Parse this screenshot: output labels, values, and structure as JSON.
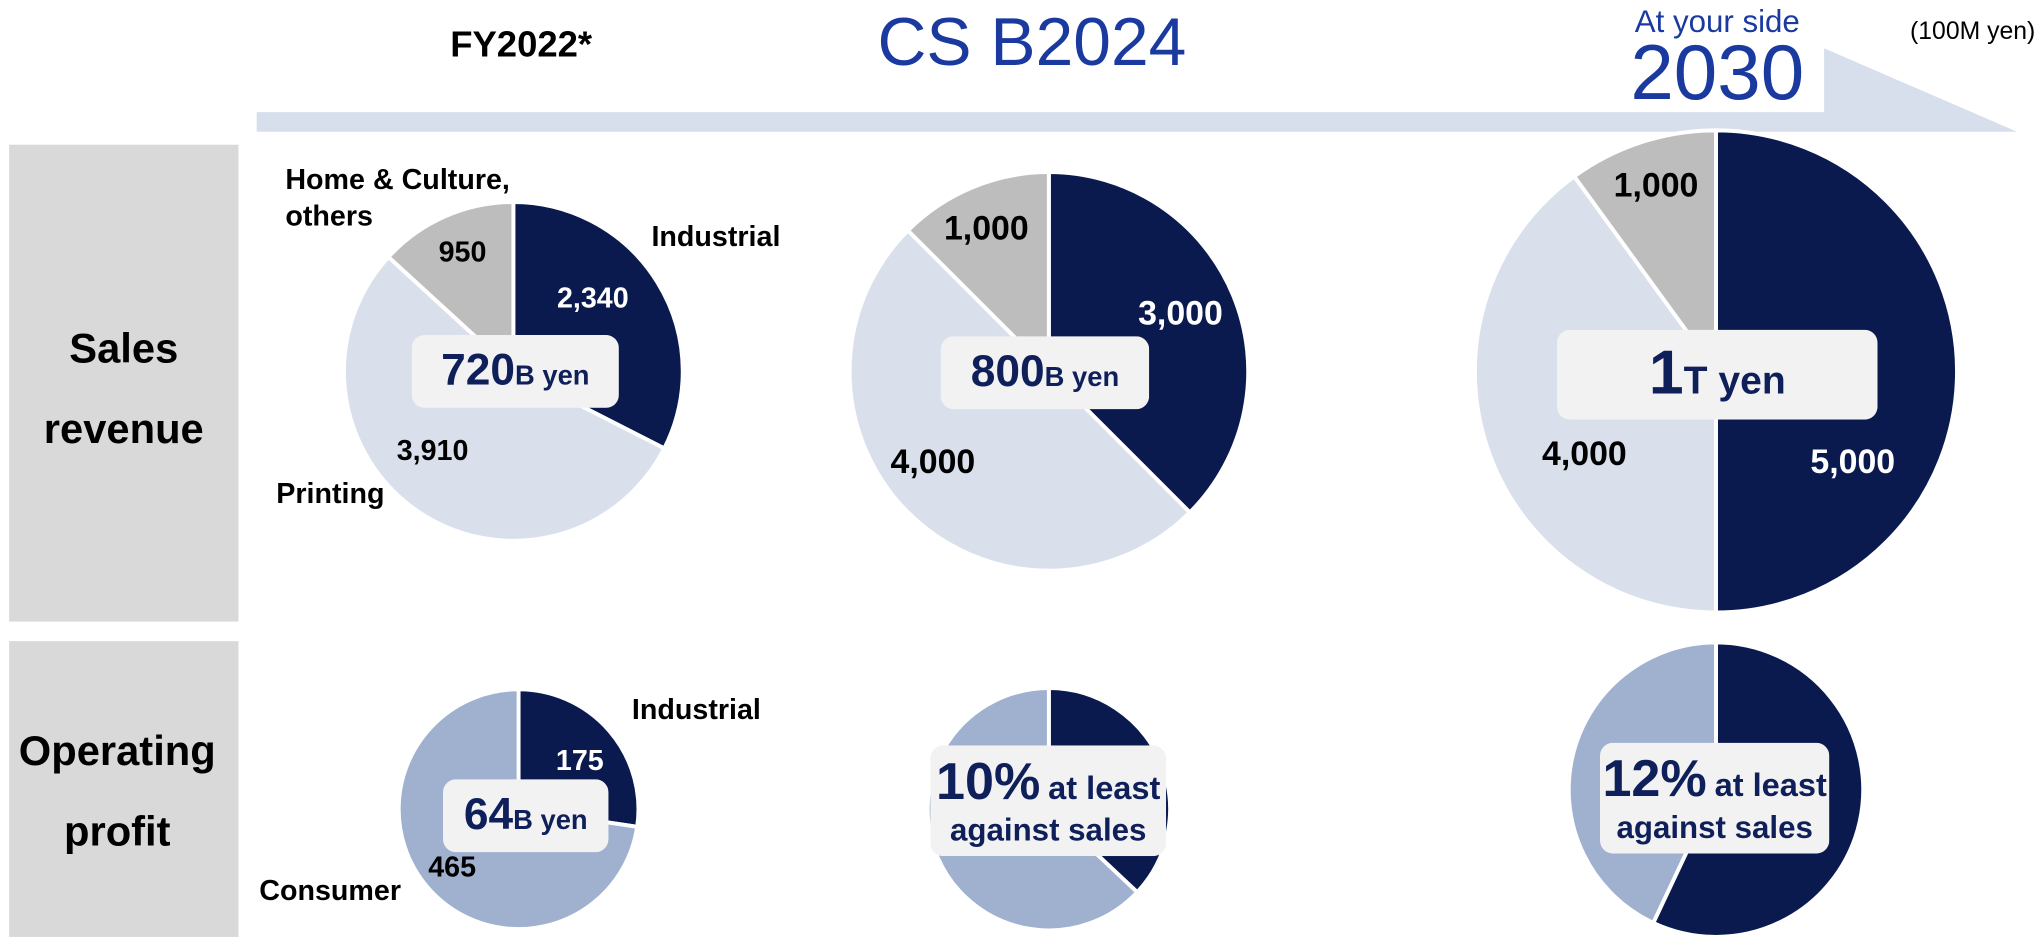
{
  "header": {
    "fy": "FY2022*",
    "plan": "CS B2024",
    "vision_tag": "At your side",
    "vision_year": "2030",
    "unit": "(100M yen)"
  },
  "rows": {
    "sales": "Sales revenue",
    "profit": "Operating profit"
  },
  "chart_data": [
    {
      "type": "pie",
      "categories": [
        "Industrial",
        "Printing",
        "Home & Culture, others"
      ],
      "values": [
        2340,
        3910,
        950
      ],
      "value_labels": [
        "2,340",
        "3,910",
        "950"
      ],
      "colors": [
        "#0a1a4e",
        "#d9e0ec",
        "#bdbdbd"
      ],
      "center_value": "720",
      "center_unit": "B yen"
    },
    {
      "type": "pie",
      "values": [
        3000,
        4000,
        1000
      ],
      "value_labels": [
        "3,000",
        "4,000",
        "1,000"
      ],
      "colors": [
        "#0a1a4e",
        "#d9e0ec",
        "#bdbdbd"
      ],
      "center_value": "800",
      "center_unit": "B yen"
    },
    {
      "type": "pie",
      "values": [
        5000,
        4000,
        1000
      ],
      "value_labels": [
        "5,000",
        "4,000",
        "1,000"
      ],
      "colors": [
        "#0a1a4e",
        "#d9e0ec",
        "#bdbdbd"
      ],
      "center_value": "1",
      "center_unit": "T yen"
    },
    {
      "type": "pie",
      "categories": [
        "Industrial",
        "Consumer"
      ],
      "values": [
        175,
        465
      ],
      "value_labels": [
        "175",
        "465"
      ],
      "colors": [
        "#0a1a4e",
        "#9fb1cf"
      ],
      "center_value": "64",
      "center_unit": "B yen"
    },
    {
      "type": "pie",
      "values": [
        37,
        63
      ],
      "colors": [
        "#0a1a4e",
        "#9fb1cf"
      ],
      "center_value": "10%",
      "center_unit": "at least",
      "center_note": "against sales"
    },
    {
      "type": "pie",
      "values": [
        57,
        43
      ],
      "colors": [
        "#0a1a4e",
        "#9fb1cf"
      ],
      "center_value": "12%",
      "center_unit": "at least",
      "center_note": "against sales"
    }
  ]
}
